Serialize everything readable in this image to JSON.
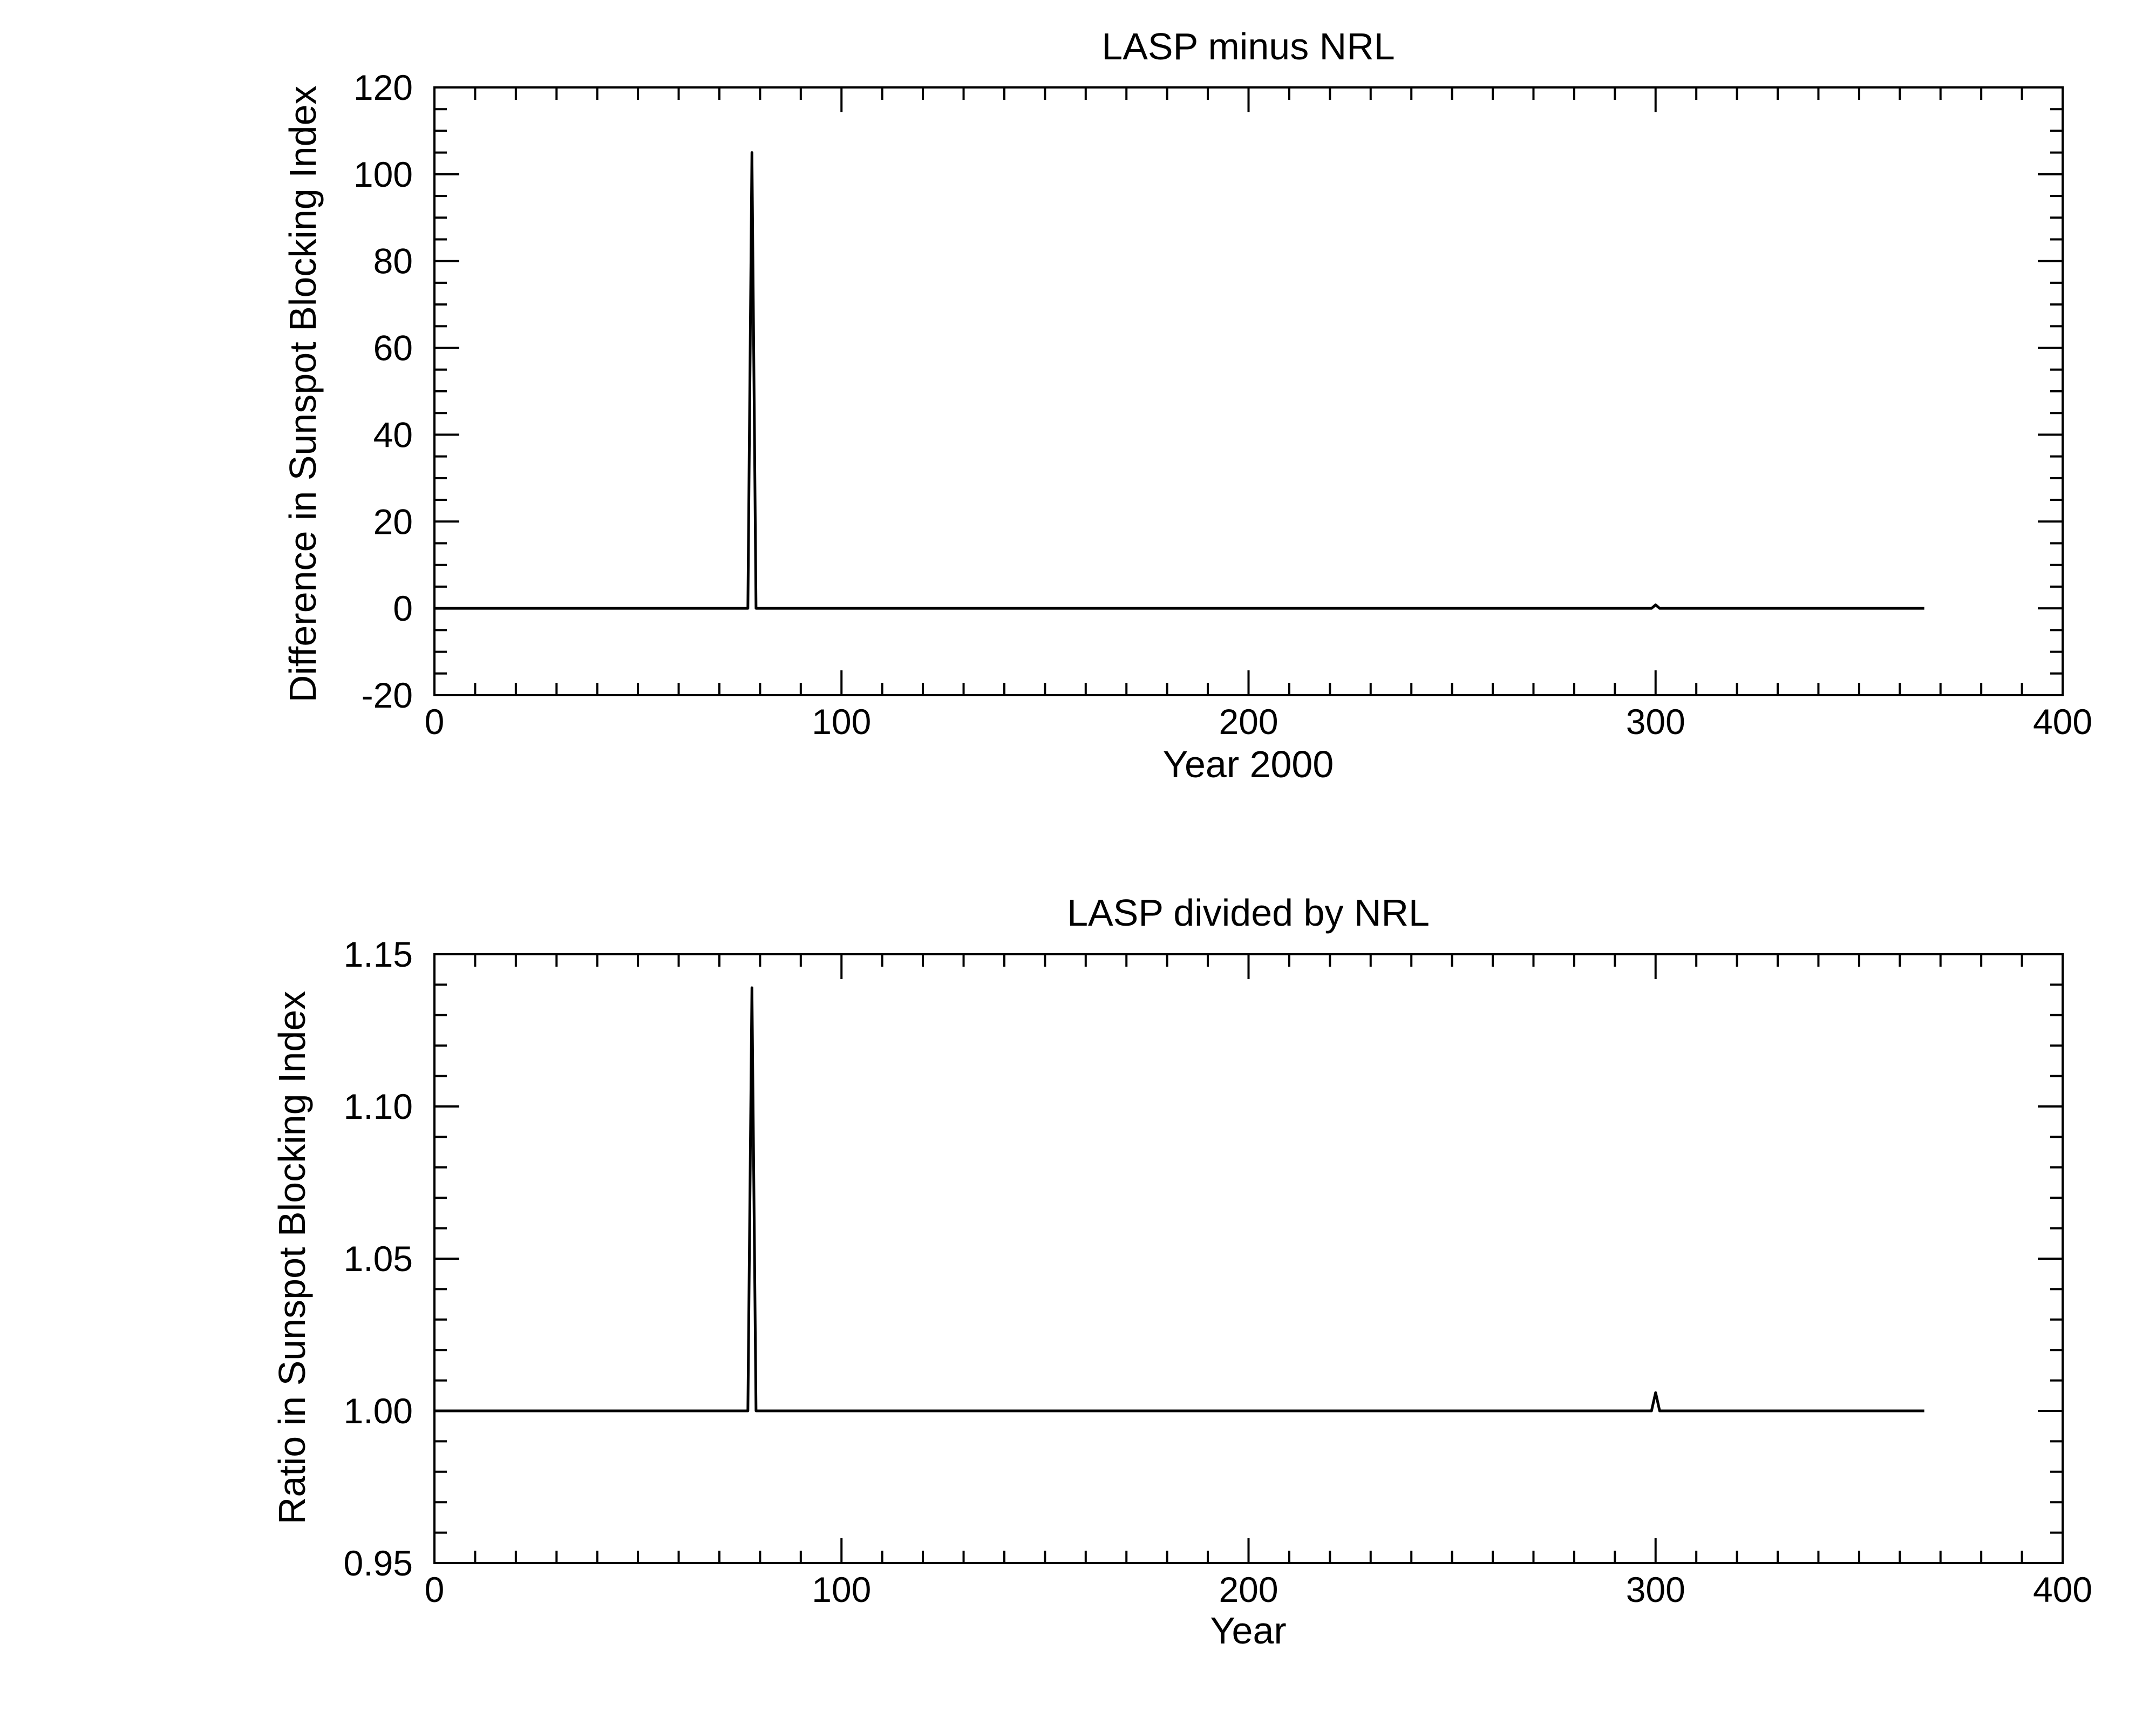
{
  "chart_data": [
    {
      "type": "line",
      "title": "LASP minus NRL",
      "xlabel": "Year 2000",
      "ylabel": "Difference in Sunspot Blocking Index",
      "xlim": [
        0,
        400
      ],
      "ylim": [
        -20,
        120
      ],
      "xticks": [
        0,
        100,
        200,
        300,
        400
      ],
      "xtick_labels": [
        "0",
        "100",
        "200",
        "300",
        "400"
      ],
      "yticks": [
        -20,
        0,
        20,
        40,
        60,
        80,
        100,
        120
      ],
      "ytick_labels": [
        "-20",
        "0",
        "20",
        "40",
        "60",
        "80",
        "100",
        "120"
      ],
      "x_minor_step": 10,
      "y_minor_step": 5,
      "grid": false,
      "series": [
        {
          "x": [
            0,
            77,
            78,
            79,
            135,
            299,
            300,
            301,
            366
          ],
          "y": [
            0,
            0,
            105,
            0,
            0,
            0,
            0.8,
            0,
            0
          ]
        }
      ]
    },
    {
      "type": "line",
      "title": "LASP divided by NRL",
      "xlabel": "Year",
      "ylabel": "Ratio in Sunspot Blocking Index",
      "xlim": [
        0,
        400
      ],
      "ylim": [
        0.95,
        1.15
      ],
      "xticks": [
        0,
        100,
        200,
        300,
        400
      ],
      "xtick_labels": [
        "0",
        "100",
        "200",
        "300",
        "400"
      ],
      "yticks": [
        0.95,
        1.0,
        1.05,
        1.1,
        1.15
      ],
      "ytick_labels": [
        "0.95",
        "1.00",
        "1.05",
        "1.10",
        "1.15"
      ],
      "x_minor_step": 10,
      "y_minor_step": 0.01,
      "grid": false,
      "series": [
        {
          "x": [
            0,
            77,
            78,
            79,
            299,
            300,
            301,
            366
          ],
          "y": [
            1.0,
            1.0,
            1.139,
            1.0,
            1.0,
            1.006,
            1.0,
            1.0
          ]
        }
      ]
    }
  ]
}
